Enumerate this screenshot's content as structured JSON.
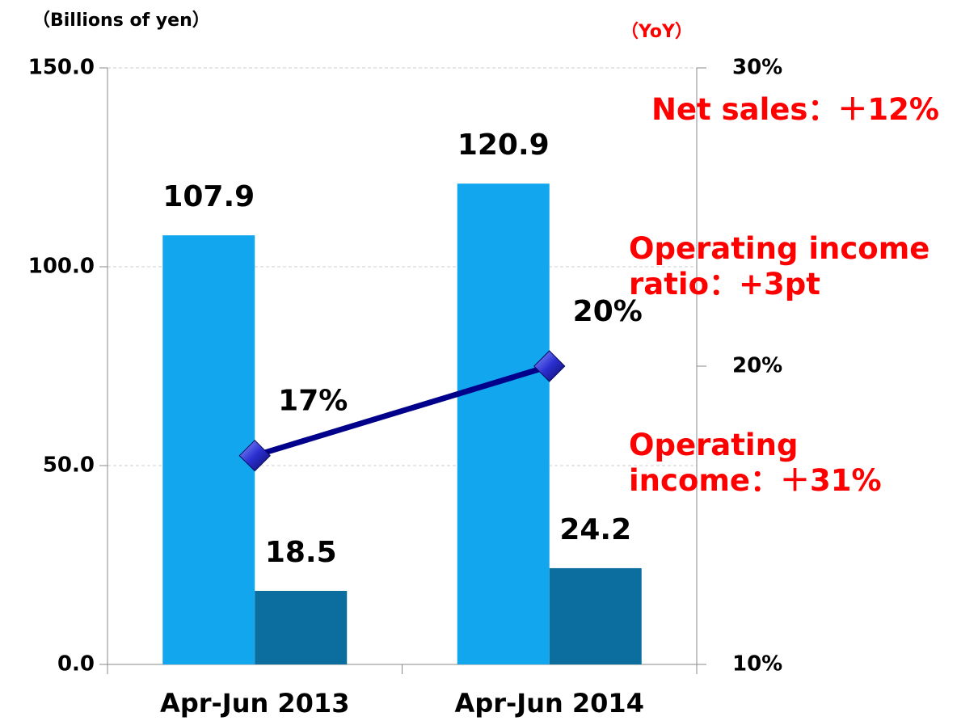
{
  "chart_data": {
    "type": "bar",
    "y_label": "（Billions of yen）",
    "y2_label": "（YoY）",
    "categories": [
      "Apr-Jun 2013",
      "Apr-Jun 2014"
    ],
    "series": [
      {
        "type": "bar",
        "color": "#12a6ee",
        "values": [
          107.9,
          120.9
        ]
      },
      {
        "type": "bar",
        "color": "#0b6e9f",
        "values": [
          18.5,
          24.2
        ]
      },
      {
        "type": "line",
        "axis": "y2",
        "color": "#00008b",
        "values": [
          17,
          20
        ],
        "value_labels": [
          "17%",
          "20%"
        ]
      }
    ],
    "ylim": [
      0,
      150
    ],
    "yticks": [
      {
        "value": 0,
        "label": "0.0"
      },
      {
        "value": 50,
        "label": "50.0"
      },
      {
        "value": 100,
        "label": "100.0"
      },
      {
        "value": 150,
        "label": "150.0"
      }
    ],
    "y2lim": [
      10,
      30
    ],
    "y2ticks": [
      {
        "value": 10,
        "label": "10%"
      },
      {
        "value": 20,
        "label": "20%"
      },
      {
        "value": 30,
        "label": "30%"
      }
    ],
    "grid": true,
    "annotations": [
      {
        "lines": [
          "Net sales：＋12%"
        ]
      },
      {
        "lines": [
          "Operating income",
          "ratio：+3pt"
        ]
      },
      {
        "lines": [
          "Operating",
          "income：＋31%"
        ]
      }
    ]
  }
}
